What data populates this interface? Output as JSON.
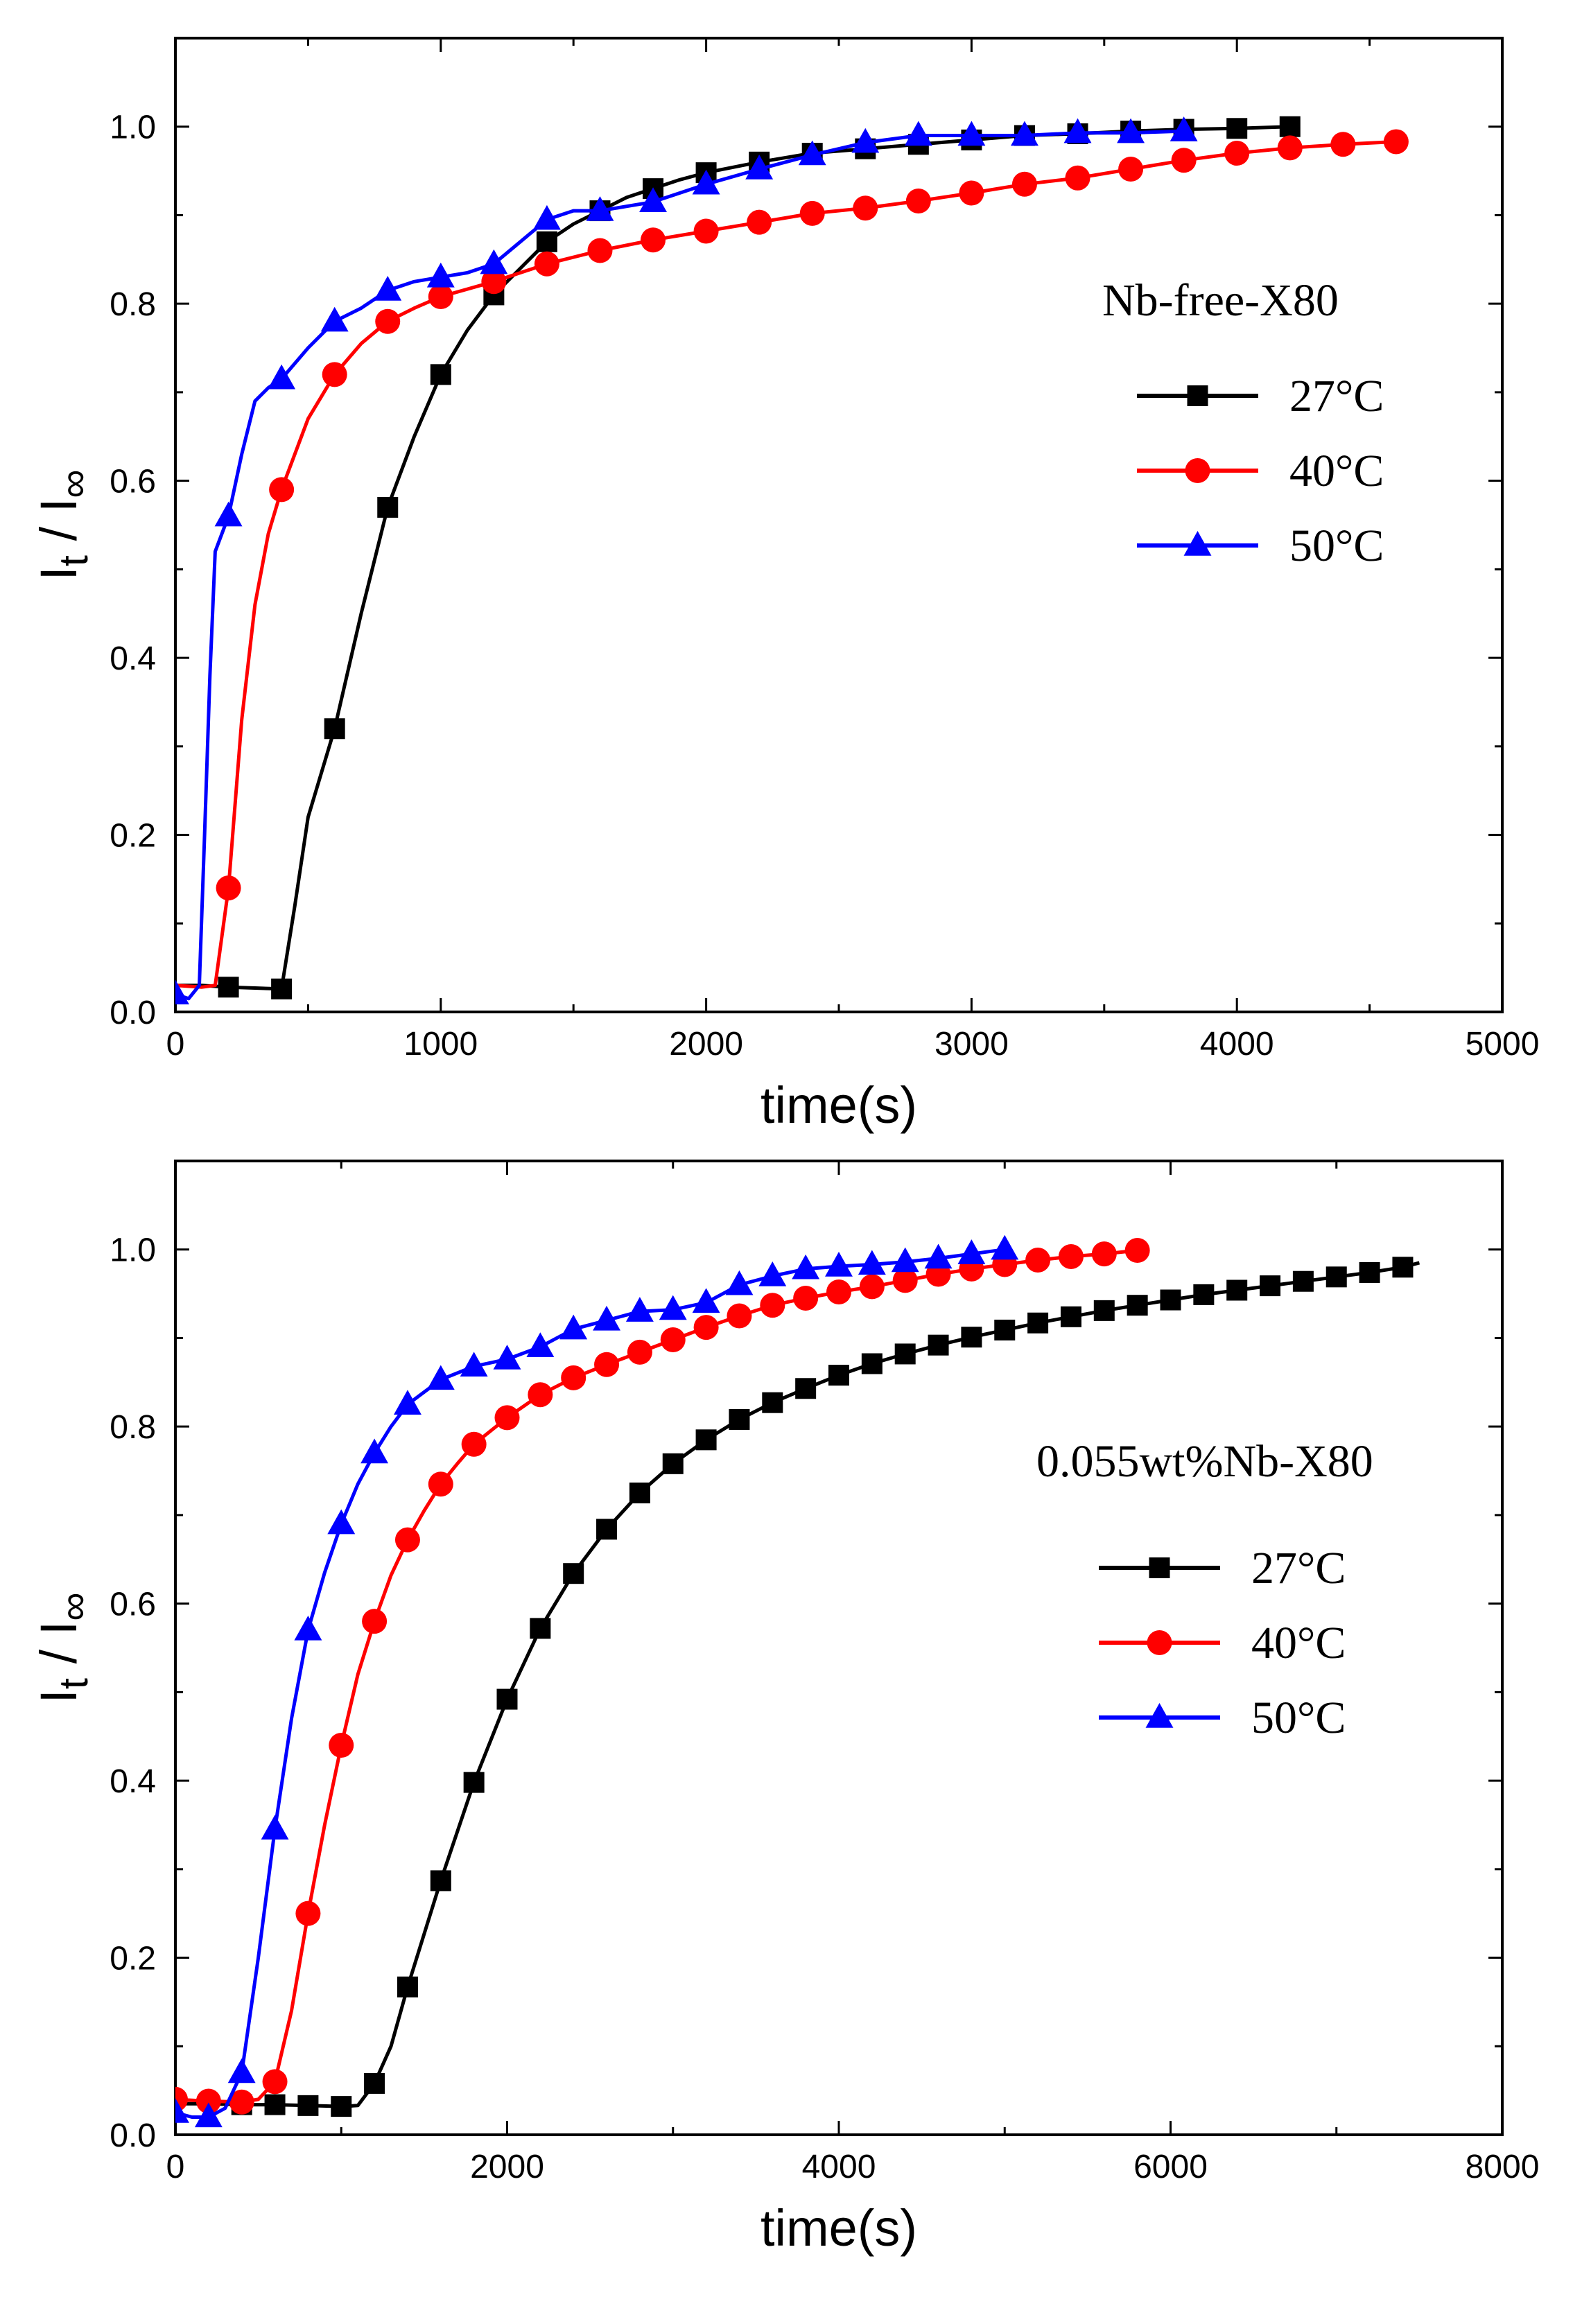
{
  "colors": {
    "27C": "#000000",
    "40C": "#ff0000",
    "50C": "#0000ff",
    "axis": "#000000",
    "background": "#ffffff"
  },
  "chart_data": [
    {
      "type": "line",
      "annotation": "Nb-free-X80",
      "xlabel": "time(s)",
      "ylabel": {
        "main": "I",
        "sub1": "t",
        "sep": " / I",
        "sub2": "∞"
      },
      "xlim": [
        0,
        5000
      ],
      "ylim": [
        0,
        1.1
      ],
      "xticks": [
        0,
        1000,
        2000,
        3000,
        4000,
        5000
      ],
      "xtick_labels": [
        "0",
        "1000",
        "2000",
        "3000",
        "4000",
        "5000"
      ],
      "yticks": [
        0.0,
        0.2,
        0.4,
        0.6,
        0.8,
        1.0
      ],
      "ytick_labels": [
        "0.0",
        "0.2",
        "0.4",
        "0.6",
        "0.8",
        "1.0"
      ],
      "legend": {
        "position": "right",
        "entries": [
          "27°C",
          "40°C",
          "50°C"
        ]
      },
      "series": [
        {
          "name": "27°C",
          "color": "#000000",
          "marker": "square",
          "x": [
            0,
            100,
            200,
            300,
            400,
            450,
            500,
            600,
            700,
            800,
            900,
            1000,
            1100,
            1200,
            1300,
            1400,
            1500,
            1600,
            1700,
            1800,
            1900,
            2000,
            2200,
            2400,
            2600,
            2800,
            3000,
            3200,
            3400,
            3600,
            3800,
            4000,
            4200,
            4220
          ],
          "y": [
            0.03,
            0.03,
            0.028,
            0.027,
            0.026,
            0.12,
            0.22,
            0.32,
            0.45,
            0.57,
            0.65,
            0.72,
            0.77,
            0.81,
            0.84,
            0.87,
            0.89,
            0.905,
            0.92,
            0.93,
            0.94,
            0.948,
            0.96,
            0.97,
            0.975,
            0.98,
            0.985,
            0.99,
            0.992,
            0.995,
            0.997,
            0.998,
            1.0,
            0.998
          ],
          "marker_x": [
            200,
            400,
            600,
            800,
            1000,
            1200,
            1400,
            1600,
            1800,
            2000,
            2200,
            2400,
            2600,
            2800,
            3000,
            3200,
            3400,
            3600,
            3800,
            4000,
            4200
          ],
          "marker_y": [
            0.028,
            0.026,
            0.32,
            0.57,
            0.72,
            0.81,
            0.87,
            0.905,
            0.93,
            0.948,
            0.96,
            0.97,
            0.975,
            0.98,
            0.985,
            0.99,
            0.992,
            0.995,
            0.997,
            0.998,
            1.0
          ]
        },
        {
          "name": "40°C",
          "color": "#ff0000",
          "marker": "circle",
          "x": [
            0,
            100,
            150,
            200,
            250,
            300,
            350,
            400,
            500,
            600,
            700,
            800,
            900,
            1000,
            1200,
            1400,
            1600,
            1800,
            2000,
            2200,
            2400,
            2600,
            2800,
            3000,
            3200,
            3400,
            3600,
            3800,
            4000,
            4200,
            4400,
            4600
          ],
          "y": [
            0.03,
            0.028,
            0.03,
            0.14,
            0.33,
            0.46,
            0.54,
            0.59,
            0.67,
            0.72,
            0.755,
            0.78,
            0.795,
            0.808,
            0.825,
            0.845,
            0.86,
            0.872,
            0.882,
            0.892,
            0.902,
            0.908,
            0.916,
            0.925,
            0.935,
            0.942,
            0.952,
            0.962,
            0.97,
            0.976,
            0.98,
            0.983
          ],
          "marker_x": [
            200,
            400,
            600,
            800,
            1000,
            1200,
            1400,
            1600,
            1800,
            2000,
            2200,
            2400,
            2600,
            2800,
            3000,
            3200,
            3400,
            3600,
            3800,
            4000,
            4200,
            4400,
            4600
          ],
          "marker_y": [
            0.14,
            0.59,
            0.72,
            0.78,
            0.808,
            0.825,
            0.845,
            0.86,
            0.872,
            0.882,
            0.892,
            0.902,
            0.908,
            0.916,
            0.925,
            0.935,
            0.942,
            0.952,
            0.962,
            0.97,
            0.976,
            0.98,
            0.983
          ]
        },
        {
          "name": "50°C",
          "color": "#0000ff",
          "marker": "triangle",
          "x": [
            0,
            50,
            90,
            110,
            130,
            150,
            200,
            250,
            300,
            350,
            400,
            500,
            600,
            700,
            800,
            900,
            1000,
            1100,
            1200,
            1300,
            1400,
            1500,
            1600,
            1800,
            2000,
            2200,
            2400,
            2600,
            2800,
            3000,
            3200,
            3400,
            3600,
            3800
          ],
          "y": [
            0.02,
            0.015,
            0.03,
            0.2,
            0.38,
            0.52,
            0.56,
            0.63,
            0.69,
            0.705,
            0.715,
            0.75,
            0.78,
            0.795,
            0.815,
            0.825,
            0.83,
            0.835,
            0.845,
            0.87,
            0.895,
            0.905,
            0.905,
            0.915,
            0.935,
            0.952,
            0.968,
            0.982,
            0.99,
            0.99,
            0.99,
            0.993,
            0.993,
            0.995
          ],
          "marker_x": [
            0,
            200,
            400,
            600,
            800,
            1000,
            1200,
            1400,
            1600,
            1800,
            2000,
            2200,
            2400,
            2600,
            2800,
            3000,
            3200,
            3400,
            3600,
            3800
          ],
          "marker_y": [
            0.02,
            0.56,
            0.715,
            0.78,
            0.815,
            0.83,
            0.845,
            0.895,
            0.905,
            0.915,
            0.935,
            0.952,
            0.968,
            0.982,
            0.99,
            0.99,
            0.99,
            0.993,
            0.993,
            0.995
          ]
        }
      ]
    },
    {
      "type": "line",
      "annotation": "0.055wt%Nb-X80",
      "xlabel": "time(s)",
      "ylabel": {
        "main": "I",
        "sub1": "t",
        "sep": " / I",
        "sub2": "∞"
      },
      "xlim": [
        0,
        8000
      ],
      "ylim": [
        0,
        1.1
      ],
      "xticks": [
        0,
        2000,
        4000,
        6000,
        8000
      ],
      "xtick_labels": [
        "0",
        "2000",
        "4000",
        "6000",
        "8000"
      ],
      "yticks": [
        0.0,
        0.2,
        0.4,
        0.6,
        0.8,
        1.0
      ],
      "ytick_labels": [
        "0.0",
        "0.2",
        "0.4",
        "0.6",
        "0.8",
        "1.0"
      ],
      "legend": {
        "position": "right",
        "entries": [
          "27°C",
          "40°C",
          "50°C"
        ]
      },
      "series": [
        {
          "name": "27°C",
          "color": "#000000",
          "marker": "square",
          "x": [
            0,
            200,
            400,
            600,
            800,
            1000,
            1100,
            1200,
            1300,
            1400,
            1600,
            1800,
            2000,
            2200,
            2400,
            2600,
            2800,
            3000,
            3200,
            3400,
            3600,
            3800,
            4000,
            4200,
            4400,
            4600,
            4800,
            5000,
            5200,
            5400,
            5600,
            5800,
            6000,
            6200,
            6400,
            6600,
            6800,
            7000,
            7200,
            7400,
            7500
          ],
          "y": [
            0.035,
            0.035,
            0.034,
            0.034,
            0.033,
            0.032,
            0.033,
            0.058,
            0.1,
            0.167,
            0.287,
            0.398,
            0.492,
            0.572,
            0.634,
            0.684,
            0.725,
            0.758,
            0.785,
            0.808,
            0.827,
            0.843,
            0.858,
            0.871,
            0.882,
            0.892,
            0.901,
            0.909,
            0.917,
            0.924,
            0.931,
            0.937,
            0.943,
            0.949,
            0.954,
            0.959,
            0.964,
            0.969,
            0.974,
            0.98,
            0.985
          ],
          "marker_x": [
            400,
            600,
            800,
            1000,
            1200,
            1400,
            1600,
            1800,
            2000,
            2200,
            2400,
            2600,
            2800,
            3000,
            3200,
            3400,
            3600,
            3800,
            4000,
            4200,
            4400,
            4600,
            4800,
            5000,
            5200,
            5400,
            5600,
            5800,
            6000,
            6200,
            6400,
            6600,
            6800,
            7000,
            7200,
            7400
          ],
          "marker_y": [
            0.034,
            0.034,
            0.033,
            0.032,
            0.058,
            0.167,
            0.287,
            0.398,
            0.492,
            0.572,
            0.634,
            0.684,
            0.725,
            0.758,
            0.785,
            0.808,
            0.827,
            0.843,
            0.858,
            0.871,
            0.882,
            0.892,
            0.901,
            0.909,
            0.917,
            0.924,
            0.931,
            0.937,
            0.943,
            0.949,
            0.954,
            0.959,
            0.964,
            0.969,
            0.974,
            0.98
          ]
        },
        {
          "name": "40°C",
          "color": "#ff0000",
          "marker": "circle",
          "x": [
            0,
            200,
            400,
            500,
            600,
            700,
            800,
            900,
            1000,
            1100,
            1200,
            1300,
            1400,
            1500,
            1600,
            1700,
            1800,
            1900,
            2000,
            2200,
            2400,
            2600,
            2800,
            3000,
            3200,
            3400,
            3600,
            3800,
            4000,
            4200,
            4400,
            4600,
            4800,
            5000,
            5200,
            5400,
            5600,
            5800
          ],
          "y": [
            0.04,
            0.038,
            0.037,
            0.04,
            0.06,
            0.14,
            0.25,
            0.35,
            0.44,
            0.52,
            0.58,
            0.632,
            0.672,
            0.705,
            0.735,
            0.758,
            0.78,
            0.795,
            0.81,
            0.836,
            0.855,
            0.87,
            0.884,
            0.898,
            0.912,
            0.925,
            0.937,
            0.945,
            0.952,
            0.958,
            0.965,
            0.972,
            0.978,
            0.983,
            0.988,
            0.992,
            0.995,
            0.999
          ],
          "marker_x": [
            0,
            200,
            400,
            600,
            800,
            1000,
            1200,
            1400,
            1600,
            1800,
            2000,
            2200,
            2400,
            2600,
            2800,
            3000,
            3200,
            3400,
            3600,
            3800,
            4000,
            4200,
            4400,
            4600,
            4800,
            5000,
            5200,
            5400,
            5600,
            5800
          ],
          "marker_y": [
            0.04,
            0.038,
            0.037,
            0.06,
            0.25,
            0.44,
            0.58,
            0.672,
            0.735,
            0.78,
            0.81,
            0.836,
            0.855,
            0.87,
            0.884,
            0.898,
            0.912,
            0.925,
            0.937,
            0.945,
            0.952,
            0.958,
            0.965,
            0.972,
            0.978,
            0.983,
            0.988,
            0.992,
            0.995,
            0.999
          ]
        },
        {
          "name": "50°C",
          "color": "#0000ff",
          "marker": "triangle",
          "x": [
            0,
            100,
            200,
            300,
            400,
            500,
            600,
            700,
            800,
            900,
            1000,
            1100,
            1200,
            1300,
            1400,
            1600,
            1800,
            2000,
            2200,
            2400,
            2600,
            2800,
            3000,
            3200,
            3400,
            3600,
            3800,
            4000,
            4200,
            4400,
            4600,
            4800,
            5000
          ],
          "y": [
            0.025,
            0.02,
            0.02,
            0.03,
            0.07,
            0.2,
            0.345,
            0.47,
            0.57,
            0.635,
            0.69,
            0.735,
            0.77,
            0.8,
            0.825,
            0.853,
            0.868,
            0.876,
            0.89,
            0.91,
            0.92,
            0.93,
            0.932,
            0.94,
            0.96,
            0.97,
            0.978,
            0.981,
            0.983,
            0.986,
            0.99,
            0.995,
            1.0
          ],
          "marker_x": [
            0,
            200,
            400,
            600,
            800,
            1000,
            1200,
            1400,
            1600,
            1800,
            2000,
            2200,
            2400,
            2600,
            2800,
            3000,
            3200,
            3400,
            3600,
            3800,
            4000,
            4200,
            4400,
            4600,
            4800,
            5000
          ],
          "marker_y": [
            0.025,
            0.02,
            0.07,
            0.345,
            0.57,
            0.69,
            0.77,
            0.825,
            0.853,
            0.868,
            0.876,
            0.89,
            0.91,
            0.92,
            0.93,
            0.932,
            0.94,
            0.96,
            0.97,
            0.978,
            0.981,
            0.983,
            0.986,
            0.99,
            0.995,
            1.0
          ]
        }
      ]
    }
  ]
}
